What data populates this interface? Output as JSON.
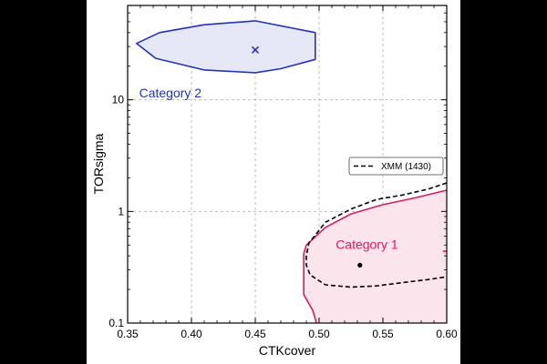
{
  "chart_data": {
    "type": "line",
    "xlabel": "CTKcover",
    "ylabel": "TORsigma",
    "xlim": [
      0.35,
      0.6
    ],
    "ylim": [
      0.1,
      70
    ],
    "y_scale": "log",
    "grid": true,
    "x_ticks": [
      0.35,
      0.4,
      0.45,
      0.5,
      0.55,
      0.6
    ],
    "x_tick_labels": [
      "0.35",
      "0.40",
      "0.45",
      "0.50",
      "0.55",
      "0.60"
    ],
    "y_ticks": [
      0.1,
      1,
      10
    ],
    "y_tick_labels": [
      "0.1",
      "1",
      "10"
    ],
    "legend": {
      "placement": "right",
      "entries": [
        "XMM (1430)"
      ]
    },
    "colors": {
      "category_1": "#d81b60",
      "category_1_fill": "#fce4ec",
      "category_2": "#2233bb",
      "category_2_fill": "#e6e8f8",
      "xmm": "#000000",
      "grid": "#b0b0b0",
      "background": "#000000"
    },
    "regions": [
      {
        "name": "Category 2",
        "label_at": [
          0.359,
          10.5
        ],
        "center_marker": "x",
        "center": [
          0.45,
          28
        ],
        "contour": [
          [
            0.357,
            32
          ],
          [
            0.375,
            40
          ],
          [
            0.41,
            47
          ],
          [
            0.45,
            51
          ],
          [
            0.497,
            40
          ],
          [
            0.497,
            23
          ],
          [
            0.47,
            19
          ],
          [
            0.45,
            17.5
          ],
          [
            0.41,
            18.5
          ],
          [
            0.372,
            23.5
          ],
          [
            0.357,
            32
          ]
        ]
      },
      {
        "name": "Category 1",
        "label_at": [
          0.513,
          0.46
        ],
        "center_marker": "dot",
        "center": [
          0.532,
          0.33
        ],
        "contour": [
          [
            0.6,
            1.55
          ],
          [
            0.575,
            1.32
          ],
          [
            0.55,
            1.15
          ],
          [
            0.525,
            0.95
          ],
          [
            0.505,
            0.72
          ],
          [
            0.49,
            0.5
          ],
          [
            0.488,
            0.42
          ],
          [
            0.488,
            0.18
          ],
          [
            0.495,
            0.13
          ],
          [
            0.498,
            0.1
          ],
          [
            0.6,
            0.1
          ]
        ]
      }
    ],
    "series": [
      {
        "name": "XMM (1430)",
        "style": "dashed",
        "contour": [
          [
            0.6,
            1.8
          ],
          [
            0.585,
            1.58
          ],
          [
            0.565,
            1.4
          ],
          [
            0.545,
            1.28
          ],
          [
            0.525,
            1.05
          ],
          [
            0.505,
            0.8
          ],
          [
            0.492,
            0.52
          ],
          [
            0.49,
            0.4
          ],
          [
            0.49,
            0.33
          ],
          [
            0.493,
            0.27
          ],
          [
            0.505,
            0.22
          ],
          [
            0.525,
            0.21
          ],
          [
            0.545,
            0.215
          ],
          [
            0.565,
            0.23
          ],
          [
            0.585,
            0.245
          ],
          [
            0.6,
            0.26
          ]
        ]
      }
    ]
  }
}
